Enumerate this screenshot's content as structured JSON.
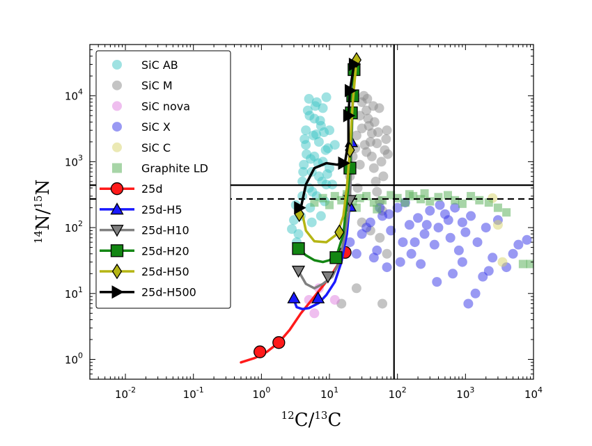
{
  "chart_data": {
    "type": "scatter",
    "title": "",
    "xlabel": {
      "sup1": "12",
      "mid": "C/",
      "sup2": "13",
      "end": "C"
    },
    "ylabel": {
      "sup1": "14",
      "mid": "N/",
      "sup2": "15",
      "end": "N"
    },
    "xscale": "log",
    "yscale": "log",
    "xlim": [
      0.003,
      10000
    ],
    "ylim": [
      0.5,
      60000
    ],
    "x_ticks": [
      {
        "value": 0.01,
        "base": "10",
        "exp": "-2"
      },
      {
        "value": 0.1,
        "base": "10",
        "exp": "-1"
      },
      {
        "value": 1,
        "base": "10",
        "exp": "0"
      },
      {
        "value": 10,
        "base": "10",
        "exp": "1"
      },
      {
        "value": 100,
        "base": "10",
        "exp": "2"
      },
      {
        "value": 1000,
        "base": "10",
        "exp": "3"
      },
      {
        "value": 10000,
        "base": "10",
        "exp": "4"
      }
    ],
    "y_ticks": [
      {
        "value": 1,
        "base": "10",
        "exp": "0"
      },
      {
        "value": 10,
        "base": "10",
        "exp": "1"
      },
      {
        "value": 100,
        "base": "10",
        "exp": "2"
      },
      {
        "value": 1000,
        "base": "10",
        "exp": "3"
      },
      {
        "value": 10000,
        "base": "10",
        "exp": "4"
      }
    ],
    "reference_lines": [
      {
        "name": "solar-c-ratio-line",
        "orientation": "vertical",
        "value": 89,
        "style": "solid"
      },
      {
        "name": "terrestrial-n-ratio-line",
        "orientation": "horizontal",
        "value": 440,
        "style": "solid"
      },
      {
        "name": "solar-n-ratio-line",
        "orientation": "horizontal",
        "value": 272,
        "style": "dashed"
      }
    ],
    "legend_position": "top-left",
    "grain_groups": [
      {
        "name": "SiC AB",
        "color": "#3fc5c5",
        "points": [
          [
            3.5,
            80
          ],
          [
            3.8,
            150
          ],
          [
            4,
            300
          ],
          [
            4,
            500
          ],
          [
            4.2,
            900
          ],
          [
            4.5,
            1800
          ],
          [
            4.5,
            3000
          ],
          [
            4.8,
            6000
          ],
          [
            5,
            9000
          ],
          [
            5,
            400
          ],
          [
            5.2,
            200
          ],
          [
            5.5,
            120
          ],
          [
            5.5,
            700
          ],
          [
            5.8,
            2500
          ],
          [
            6,
            4500
          ],
          [
            6,
            1200
          ],
          [
            6.5,
            300
          ],
          [
            6.5,
            8000
          ],
          [
            7,
            600
          ],
          [
            7,
            2000
          ],
          [
            7.5,
            150
          ],
          [
            7.5,
            3500
          ],
          [
            8,
            1000
          ],
          [
            8,
            6500
          ],
          [
            8.5,
            250
          ],
          [
            9,
            9500
          ],
          [
            9,
            450
          ],
          [
            9.5,
            1600
          ],
          [
            10,
            3000
          ],
          [
            10,
            800
          ],
          [
            3,
            130
          ],
          [
            3.2,
            220
          ],
          [
            3.3,
            60
          ],
          [
            2.8,
            95
          ],
          [
            4.3,
            2200
          ],
          [
            4.6,
            1300
          ],
          [
            5.1,
            5000
          ],
          [
            5.6,
            350
          ],
          [
            6.2,
            7000
          ],
          [
            6.8,
            950
          ],
          [
            7.3,
            4200
          ],
          [
            7.8,
            500
          ],
          [
            8.3,
            2800
          ],
          [
            8.8,
            1500
          ],
          [
            9.3,
            650
          ],
          [
            11,
            450
          ],
          [
            12,
            1800
          ],
          [
            4.1,
            700
          ],
          [
            5.3,
            1100
          ],
          [
            6.4,
            2600
          ]
        ]
      },
      {
        "name": "SiC M",
        "color": "#8a8a8a",
        "points": [
          [
            18,
            300
          ],
          [
            20,
            600
          ],
          [
            22,
            1200
          ],
          [
            25,
            2500
          ],
          [
            28,
            5000
          ],
          [
            30,
            8000
          ],
          [
            32,
            10000
          ],
          [
            35,
            6000
          ],
          [
            38,
            3500
          ],
          [
            40,
            2000
          ],
          [
            42,
            1200
          ],
          [
            45,
            800
          ],
          [
            48,
            500
          ],
          [
            50,
            350
          ],
          [
            55,
            250
          ],
          [
            60,
            180
          ],
          [
            65,
            1500
          ],
          [
            70,
            3000
          ],
          [
            28,
            900
          ],
          [
            33,
            1800
          ],
          [
            37,
            4500
          ],
          [
            44,
            7000
          ],
          [
            52,
            2800
          ],
          [
            58,
            1000
          ],
          [
            62,
            600
          ],
          [
            26,
            400
          ],
          [
            24,
            1600
          ],
          [
            30,
            3200
          ],
          [
            36,
            9000
          ],
          [
            46,
            4000
          ],
          [
            54,
            6500
          ],
          [
            68,
            2200
          ],
          [
            72,
            1300
          ],
          [
            35,
            1400
          ],
          [
            42,
            2700
          ],
          [
            50,
            1900
          ],
          [
            30,
            120
          ],
          [
            40,
            90
          ],
          [
            55,
            70
          ],
          [
            20,
            200
          ],
          [
            25,
            12
          ],
          [
            60,
            7
          ],
          [
            15,
            7
          ],
          [
            70,
            40
          ]
        ]
      },
      {
        "name": "SiC nova",
        "color": "#e07ee0",
        "points": [
          [
            6,
            5
          ],
          [
            5,
            8
          ],
          [
            7,
            12
          ],
          [
            12,
            8
          ]
        ]
      },
      {
        "name": "SiC X",
        "color": "#3434e8",
        "points": [
          [
            20,
            60
          ],
          [
            30,
            80
          ],
          [
            40,
            120
          ],
          [
            50,
            45
          ],
          [
            60,
            150
          ],
          [
            80,
            90
          ],
          [
            100,
            200
          ],
          [
            120,
            60
          ],
          [
            150,
            110
          ],
          [
            200,
            140
          ],
          [
            250,
            80
          ],
          [
            300,
            180
          ],
          [
            350,
            55
          ],
          [
            400,
            100
          ],
          [
            500,
            160
          ],
          [
            600,
            70
          ],
          [
            700,
            200
          ],
          [
            800,
            45
          ],
          [
            900,
            120
          ],
          [
            1000,
            85
          ],
          [
            1200,
            150
          ],
          [
            1500,
            60
          ],
          [
            2000,
            100
          ],
          [
            2500,
            35
          ],
          [
            3000,
            130
          ],
          [
            4000,
            25
          ],
          [
            5000,
            40
          ],
          [
            6000,
            55
          ],
          [
            8000,
            65
          ],
          [
            1800,
            18
          ],
          [
            1400,
            10
          ],
          [
            1100,
            7
          ],
          [
            2200,
            22
          ],
          [
            45,
            35
          ],
          [
            70,
            25
          ],
          [
            110,
            30
          ],
          [
            160,
            40
          ],
          [
            220,
            28
          ],
          [
            380,
            15
          ],
          [
            650,
            20
          ],
          [
            900,
            30
          ],
          [
            25,
            40
          ],
          [
            35,
            100
          ],
          [
            55,
            200
          ],
          [
            75,
            160
          ],
          [
            130,
            240
          ],
          [
            180,
            60
          ],
          [
            270,
            110
          ],
          [
            420,
            220
          ],
          [
            560,
            130
          ]
        ]
      },
      {
        "name": "SiC C",
        "color": "#d8d36a",
        "points": [
          [
            3000,
            110
          ],
          [
            3500,
            30
          ],
          [
            2500,
            280
          ]
        ]
      },
      {
        "name": "Graphite LD",
        "color": "#5fb35f",
        "points": [
          [
            8,
            280
          ],
          [
            12,
            300
          ],
          [
            15,
            260
          ],
          [
            18,
            320
          ],
          [
            22,
            250
          ],
          [
            28,
            280
          ],
          [
            35,
            300
          ],
          [
            45,
            240
          ],
          [
            60,
            260
          ],
          [
            80,
            310
          ],
          [
            100,
            280
          ],
          [
            130,
            240
          ],
          [
            170,
            300
          ],
          [
            220,
            270
          ],
          [
            300,
            250
          ],
          [
            400,
            290
          ],
          [
            550,
            310
          ],
          [
            700,
            260
          ],
          [
            900,
            230
          ],
          [
            1200,
            300
          ],
          [
            1600,
            260
          ],
          [
            2200,
            240
          ],
          [
            3000,
            200
          ],
          [
            4000,
            170
          ],
          [
            7000,
            28
          ],
          [
            9000,
            28
          ],
          [
            6,
            240
          ],
          [
            10,
            220
          ],
          [
            25,
            200
          ],
          [
            50,
            190
          ],
          [
            150,
            320
          ],
          [
            250,
            330
          ]
        ]
      }
    ],
    "model_tracks": [
      {
        "name": "25d",
        "color": "#ff1a1a",
        "marker": "circle",
        "curve": [
          [
            0.5,
            0.9
          ],
          [
            0.8,
            1.05
          ],
          [
            1.2,
            1.3
          ],
          [
            1.8,
            1.8
          ],
          [
            2.6,
            2.8
          ],
          [
            3.8,
            5
          ],
          [
            5.5,
            8
          ],
          [
            8,
            13
          ],
          [
            11,
            20
          ],
          [
            14,
            30
          ],
          [
            17,
            42
          ]
        ],
        "markers": [
          [
            0.95,
            1.3
          ],
          [
            1.8,
            1.8
          ],
          [
            17,
            42
          ]
        ]
      },
      {
        "name": "25d-H5",
        "color": "#1a1aff",
        "marker": "triangle-up",
        "curve": [
          [
            3,
            8
          ],
          [
            3.3,
            6.2
          ],
          [
            4,
            5.8
          ],
          [
            5,
            6
          ],
          [
            7,
            7.2
          ],
          [
            9,
            9.5
          ],
          [
            12,
            15
          ],
          [
            15,
            30
          ],
          [
            18,
            80
          ],
          [
            20,
            250
          ],
          [
            21,
            2000
          ],
          [
            22,
            10000
          ],
          [
            23,
            30000
          ]
        ],
        "markers": [
          [
            3,
            8.5
          ],
          [
            6.8,
            8.5
          ],
          [
            20,
            210
          ],
          [
            21,
            2000
          ]
        ]
      },
      {
        "name": "25d-H10",
        "color": "#808080",
        "marker": "triangle-down",
        "curve": [
          [
            3.5,
            22
          ],
          [
            4.5,
            14
          ],
          [
            6,
            12
          ],
          [
            8,
            14
          ],
          [
            11,
            18
          ],
          [
            14,
            30
          ],
          [
            17,
            80
          ],
          [
            20,
            250
          ],
          [
            21,
            1500
          ],
          [
            22,
            8000
          ]
        ],
        "markers": [
          [
            3.5,
            22
          ],
          [
            9.5,
            18
          ],
          [
            20,
            260
          ]
        ]
      },
      {
        "name": "25d-H20",
        "color": "#138613",
        "marker": "square",
        "curve": [
          [
            3.5,
            48
          ],
          [
            4.5,
            38
          ],
          [
            6,
            32
          ],
          [
            8,
            30
          ],
          [
            10,
            32
          ],
          [
            13,
            40
          ],
          [
            16,
            80
          ],
          [
            18,
            250
          ],
          [
            20,
            800
          ],
          [
            22,
            8000
          ],
          [
            23,
            25000
          ]
        ],
        "markers": [
          [
            3.5,
            48
          ],
          [
            12.5,
            35
          ],
          [
            20,
            800
          ],
          [
            21,
            5500
          ],
          [
            22,
            10000
          ],
          [
            23,
            25000
          ]
        ]
      },
      {
        "name": "25d-H50",
        "color": "#b5b514",
        "marker": "diamond",
        "curve": [
          [
            4,
            160
          ],
          [
            4.5,
            90
          ],
          [
            6,
            62
          ],
          [
            9,
            60
          ],
          [
            13,
            80
          ],
          [
            16,
            150
          ],
          [
            18,
            400
          ],
          [
            20,
            1500
          ],
          [
            22,
            8000
          ],
          [
            25,
            35000
          ]
        ],
        "markers": [
          [
            3.6,
            160
          ],
          [
            14,
            85
          ],
          [
            20,
            1500
          ],
          [
            25,
            35000
          ]
        ]
      },
      {
        "name": "25d-H500",
        "color": "#000000",
        "marker": "triangle-right",
        "curve": [
          [
            3.8,
            200
          ],
          [
            4.5,
            450
          ],
          [
            6,
            800
          ],
          [
            9,
            950
          ],
          [
            13,
            900
          ],
          [
            17,
            1000
          ],
          [
            19,
            2000
          ],
          [
            19,
            5000
          ],
          [
            20,
            12000
          ],
          [
            23,
            30000
          ]
        ],
        "markers": [
          [
            3.6,
            200
          ],
          [
            16,
            950
          ],
          [
            19,
            5000
          ],
          [
            20,
            12000
          ],
          [
            23,
            30000
          ]
        ]
      }
    ]
  }
}
